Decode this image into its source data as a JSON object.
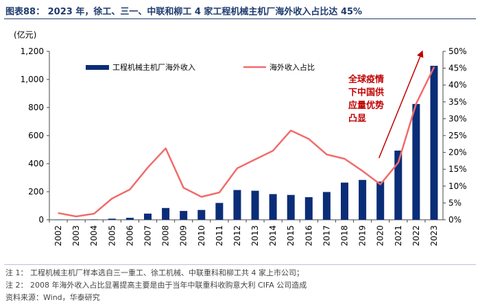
{
  "header": {
    "title": "图表88：  2023 年，徐工、三一、中联和柳工 4 家工程机械主机厂海外收入占比达 45%",
    "unit": "(亿元)"
  },
  "chart_data": {
    "type": "bar+line",
    "categories": [
      "2002",
      "2003",
      "2004",
      "2005",
      "2006",
      "2007",
      "2008",
      "2009",
      "2010",
      "2011",
      "2012",
      "2013",
      "2014",
      "2015",
      "2016",
      "2017",
      "2018",
      "2019",
      "2020",
      "2021",
      "2022",
      "2023"
    ],
    "series": [
      {
        "name": "工程机械主机厂海外收入",
        "type": "bar",
        "axis": "left",
        "color": "#0b2d78",
        "values": [
          1,
          2,
          3,
          8,
          14,
          44,
          84,
          63,
          70,
          120,
          212,
          207,
          183,
          177,
          161,
          198,
          265,
          284,
          272,
          493,
          825,
          1097
        ]
      },
      {
        "name": "海外收入占比",
        "type": "line",
        "axis": "right",
        "color": "#f26b6b",
        "values": [
          2.0,
          1.0,
          1.8,
          6.3,
          9.0,
          15.5,
          21.2,
          9.5,
          6.8,
          8.1,
          15.3,
          17.9,
          20.5,
          26.5,
          24.0,
          19.4,
          18.1,
          14.5,
          10.5,
          17.0,
          34.5,
          45.3
        ]
      }
    ],
    "y_left": {
      "ticks": [
        0,
        200,
        400,
        600,
        800,
        1000,
        1200
      ],
      "tick_labels": [
        "0",
        "200",
        "400",
        "600",
        "800",
        "1,000",
        "1,200"
      ],
      "ylim": [
        0,
        1200
      ]
    },
    "y_right": {
      "ticks": [
        0,
        5,
        10,
        15,
        20,
        25,
        30,
        35,
        40,
        45,
        50
      ],
      "tick_labels": [
        "0%",
        "5%",
        "10%",
        "15%",
        "20%",
        "25%",
        "30%",
        "35%",
        "40%",
        "45%",
        "50%"
      ],
      "ylim": [
        0,
        50
      ]
    },
    "legend_position": "top",
    "annotation": {
      "lines": [
        "全球疫情",
        "下中国供",
        "应量优势",
        "凸显"
      ],
      "color": "#c00000",
      "arrow": {
        "from": {
          "x": "2020",
          "y": 440
        },
        "to": {
          "x": "2023",
          "y": 1160
        }
      }
    }
  },
  "footer": {
    "note1": "注 1：  工程机械主机厂样本选自三一重工、徐工机械、中联重科和柳工共 4 家上市公司；",
    "note2": "注 2：  2008 年海外收入占比显著提高主要是由于当年中联重科收购意大利 CIFA 公司造成",
    "source": "资料来源：Wind，华泰研究"
  }
}
